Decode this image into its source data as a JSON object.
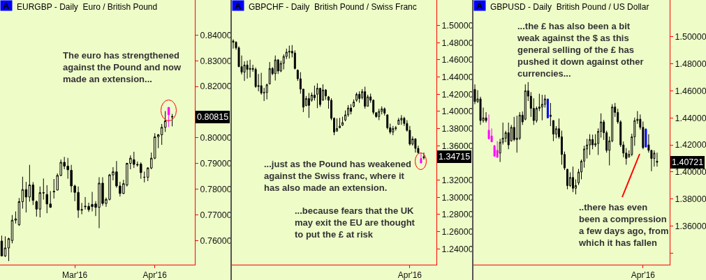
{
  "chart_data": [
    {
      "type": "candlestick",
      "title": "EURGBP - Daily  Euro / British Pound",
      "categories": [
        null,
        null,
        null,
        null,
        null,
        null,
        null,
        null,
        null,
        null,
        null,
        null,
        null,
        null,
        null,
        null,
        null,
        null,
        null,
        null,
        null,
        "Mar'16",
        null,
        null,
        null,
        null,
        null,
        null,
        null,
        null,
        null,
        null,
        null,
        null,
        null,
        null,
        null,
        null,
        null,
        null,
        null,
        null,
        null,
        null,
        "Apr'16",
        null,
        null,
        null,
        null,
        null,
        null,
        null,
        null,
        null,
        null,
        null
      ],
      "ohlc": [
        [
          0.7599,
          0.762,
          0.7539,
          0.7541
        ],
        [
          0.7541,
          0.7617,
          0.7537,
          0.7572
        ],
        [
          0.7572,
          0.7612,
          0.7521,
          0.7608
        ],
        [
          0.7601,
          0.77,
          0.759,
          0.768
        ],
        [
          0.768,
          0.7714,
          0.7667,
          0.7685
        ],
        [
          0.7662,
          0.7766,
          0.7658,
          0.7752
        ],
        [
          0.7752,
          0.7849,
          0.7725,
          0.7799
        ],
        [
          0.7799,
          0.7829,
          0.771,
          0.777
        ],
        [
          0.777,
          0.7895,
          0.7752,
          0.7817
        ],
        [
          0.7817,
          0.7828,
          0.7739,
          0.7757
        ],
        [
          0.7752,
          0.7757,
          0.7694,
          0.7723
        ],
        [
          0.7723,
          0.7811,
          0.7691,
          0.7787
        ],
        [
          0.7787,
          0.7842,
          0.776,
          0.7786
        ],
        [
          0.778,
          0.7816,
          0.7707,
          0.7743
        ],
        [
          0.7743,
          0.7793,
          0.7728,
          0.773
        ],
        [
          0.779,
          0.784,
          0.7764,
          0.7792
        ],
        [
          0.7797,
          0.7862,
          0.7796,
          0.7854
        ],
        [
          0.7854,
          0.7916,
          0.7851,
          0.7905
        ],
        [
          0.7905,
          0.7926,
          0.7878,
          0.789
        ],
        [
          0.789,
          0.7922,
          0.7841,
          0.7876
        ],
        [
          0.7874,
          0.7895,
          0.7788,
          0.7813
        ],
        [
          0.7813,
          0.7818,
          0.7754,
          0.7788
        ],
        [
          0.7788,
          0.7811,
          0.7689,
          0.7719
        ],
        [
          0.7719,
          0.7747,
          0.7703,
          0.7721
        ],
        [
          0.7732,
          0.777,
          0.7721,
          0.7734
        ],
        [
          0.7734,
          0.7748,
          0.7712,
          0.7721
        ],
        [
          0.7741,
          0.779,
          0.7714,
          0.7733
        ],
        [
          0.7743,
          0.7754,
          0.7696,
          0.773
        ],
        [
          0.773,
          0.7847,
          0.7649,
          0.7824
        ],
        [
          0.7824,
          0.7847,
          0.7736,
          0.7745
        ],
        [
          0.7745,
          0.7768,
          0.7732,
          0.7761
        ],
        [
          0.7761,
          0.786,
          0.7757,
          0.7856
        ],
        [
          0.7856,
          0.7886,
          0.7835,
          0.7868
        ],
        [
          0.7868,
          0.791,
          0.7806,
          0.7813
        ],
        [
          0.7813,
          0.7829,
          0.7772,
          0.7784
        ],
        [
          0.7784,
          0.7837,
          0.7781,
          0.7822
        ],
        [
          0.7817,
          0.7903,
          0.7811,
          0.7901
        ],
        [
          0.7901,
          0.7932,
          0.7878,
          0.7921
        ],
        [
          0.7915,
          0.7946,
          0.7883,
          0.7897
        ],
        [
          0.7897,
          0.7908,
          0.7888,
          0.7895
        ],
        [
          0.7898,
          0.7905,
          0.7841,
          0.7865
        ],
        [
          0.7847,
          0.7869,
          0.7827,
          0.7847
        ],
        [
          0.7847,
          0.7886,
          0.7832,
          0.7883
        ],
        [
          0.7883,
          0.7943,
          0.7878,
          0.7921
        ],
        [
          0.7921,
          0.8018,
          0.7917,
          0.8004
        ],
        [
          0.8004,
          0.8015,
          0.796,
          0.8012
        ],
        [
          0.8012,
          0.8054,
          0.7973,
          0.8041
        ],
        [
          0.8041,
          0.8104,
          0.8023,
          0.8066
        ],
        [
          0.8118,
          0.812,
          0.8042,
          0.809
        ],
        [
          0.8083,
          0.8093,
          0.8045,
          0.80815
        ],
        null,
        null,
        null,
        null,
        null,
        null
      ],
      "colors": [
        "#000000",
        "#000000",
        "#000000",
        "#000000",
        "#000000",
        "#000000",
        "#000000",
        "#000000",
        "#000000",
        "#000000",
        "#000000",
        "#000000",
        "#000000",
        "#000000",
        "#000000",
        "#000000",
        "#000000",
        "#000000",
        "#000000",
        "#000000",
        "#000000",
        "#000000",
        "#000000",
        "#000000",
        "#000000",
        "#000000",
        "#000000",
        "#000000",
        "#000000",
        "#000000",
        "#000000",
        "#000000",
        "#000000",
        "#000000",
        "#000000",
        "#000000",
        "#000000",
        "#000000",
        "#000000",
        "#000000",
        "#000000",
        "#000000",
        "#000000",
        "#000000",
        "#000000",
        "#000000",
        "#000000",
        "#000000",
        "#ff00ff",
        "#000000",
        null,
        null,
        null,
        null,
        null,
        null
      ],
      "value_labels": [
        null,
        null,
        null,
        null,
        null,
        null,
        null,
        null,
        null,
        null,
        null,
        null,
        null,
        null,
        null,
        null,
        null,
        null,
        null,
        null,
        null,
        null,
        null,
        null,
        null,
        null,
        null,
        null,
        null,
        null,
        null,
        null,
        null,
        null,
        null,
        null,
        null,
        null,
        null,
        null,
        null,
        null,
        null,
        null,
        null,
        null,
        null,
        null,
        null,
        "0.80815",
        null,
        null,
        null,
        null,
        null,
        null
      ],
      "ylim": [
        0.7507,
        0.8536
      ],
      "yticks": [
        {
          "value": 0.76,
          "label": "0.76000"
        },
        {
          "value": 0.77,
          "label": "0.77000"
        },
        {
          "value": 0.78,
          "label": "0.78000"
        },
        {
          "value": 0.79,
          "label": "0.79000"
        },
        {
          "value": 0.8,
          "label": "0.80000"
        },
        {
          "value": 0.82,
          "label": "0.82000"
        },
        {
          "value": 0.83,
          "label": "0.83000"
        },
        {
          "value": 0.84,
          "label": "0.84000"
        }
      ],
      "annotations": [
        "A",
        "The euro has strengthened\nagainst the Pound and now\nmade an extension..."
      ]
    },
    {
      "type": "candlestick",
      "title": "GBPCHF - Daily  British Pound / Swiss Franc",
      "categories": [
        null,
        null,
        null,
        null,
        null,
        null,
        null,
        null,
        null,
        null,
        null,
        null,
        null,
        null,
        null,
        null,
        null,
        null,
        null,
        null,
        null,
        null,
        null,
        null,
        null,
        null,
        null,
        null,
        null,
        null,
        null,
        null,
        null,
        null,
        null,
        null,
        null,
        null,
        null,
        null,
        null,
        null,
        null,
        null,
        null,
        null,
        null,
        null,
        null,
        null,
        null,
        null,
        null,
        null,
        null,
        null,
        null,
        null,
        null,
        null,
        null,
        null,
        null,
        "Apr'16",
        null,
        null,
        null,
        null,
        null,
        null,
        null,
        null,
        null
      ],
      "ohlc": [
        [
          1.482,
          1.4839,
          1.4731,
          1.4805
        ],
        [
          1.4805,
          1.4817,
          1.4718,
          1.474
        ],
        [
          1.474,
          1.4758,
          1.4516,
          1.4521
        ],
        [
          1.4521,
          1.4651,
          1.443,
          1.4457
        ],
        [
          1.4457,
          1.4583,
          1.4355,
          1.454
        ],
        [
          1.454,
          1.4591,
          1.4382,
          1.4489
        ],
        [
          1.4489,
          1.4602,
          1.4395,
          1.45
        ],
        [
          1.45,
          1.4543,
          1.4462,
          1.4489
        ],
        [
          1.4489,
          1.4511,
          1.4274,
          1.429
        ],
        [
          1.429,
          1.4436,
          1.4234,
          1.43
        ],
        [
          1.43,
          1.4449,
          1.4194,
          1.4215
        ],
        [
          1.4215,
          1.4274,
          1.4121,
          1.422
        ],
        [
          1.422,
          1.4323,
          1.414,
          1.431
        ],
        [
          1.432,
          1.4575,
          1.4315,
          1.45
        ],
        [
          1.45,
          1.4516,
          1.4422,
          1.444
        ],
        [
          1.444,
          1.4651,
          1.436,
          1.46
        ],
        [
          1.46,
          1.461,
          1.4436,
          1.447
        ],
        [
          1.447,
          1.4591,
          1.4457,
          1.456
        ],
        [
          1.456,
          1.4664,
          1.4489,
          1.464
        ],
        [
          1.464,
          1.4731,
          1.461,
          1.469
        ],
        [
          1.469,
          1.4766,
          1.4616,
          1.47
        ],
        [
          1.47,
          1.4772,
          1.4629,
          1.468
        ],
        [
          1.468,
          1.471,
          1.4489,
          1.45
        ],
        [
          1.448,
          1.4489,
          1.4355,
          1.438
        ],
        [
          1.438,
          1.4457,
          1.4207,
          1.426
        ],
        [
          1.426,
          1.426,
          1.3992,
          1.405
        ],
        [
          1.407,
          1.418,
          1.4059,
          1.415
        ],
        [
          1.415,
          1.4215,
          1.3925,
          1.407
        ],
        [
          1.413,
          1.422,
          1.4113,
          1.419
        ],
        [
          1.419,
          1.4301,
          1.4127,
          1.416
        ],
        [
          1.42,
          1.4328,
          1.4038,
          1.427
        ],
        [
          1.427,
          1.4274,
          1.4054,
          1.408
        ],
        [
          1.413,
          1.4315,
          1.4127,
          1.425
        ],
        [
          1.425,
          1.426,
          1.4135,
          1.418
        ],
        [
          1.417,
          1.418,
          1.4032,
          1.413
        ],
        [
          1.413,
          1.4153,
          1.3898,
          1.392
        ],
        [
          1.392,
          1.393,
          1.3723,
          1.376
        ],
        [
          1.377,
          1.3919,
          1.3764,
          1.38
        ],
        [
          1.381,
          1.3925,
          1.3804,
          1.383
        ],
        [
          1.384,
          1.3938,
          1.3831,
          1.387
        ],
        [
          1.39,
          1.4011,
          1.3885,
          1.396
        ],
        [
          1.396,
          1.4073,
          1.3938,
          1.404
        ],
        [
          1.404,
          1.4086,
          1.3965,
          1.4
        ],
        [
          1.406,
          1.414,
          1.4046,
          1.411
        ],
        [
          1.413,
          1.422,
          1.4113,
          1.42
        ],
        [
          1.42,
          1.4234,
          1.41,
          1.415
        ],
        [
          1.416,
          1.426,
          1.414,
          1.423
        ],
        [
          1.423,
          1.4288,
          1.4032,
          1.406
        ],
        [
          1.406,
          1.4194,
          1.4059,
          1.417
        ],
        [
          1.417,
          1.4207,
          1.41,
          1.413
        ],
        [
          1.413,
          1.414,
          1.3965,
          1.399
        ],
        [
          1.3985,
          1.3992,
          1.3925,
          1.394
        ],
        [
          1.394,
          1.4032,
          1.3898,
          1.4
        ],
        [
          1.4,
          1.4059,
          1.3965,
          1.403
        ],
        [
          1.403,
          1.4046,
          1.3952,
          1.398
        ],
        [
          1.396,
          1.3965,
          1.3791,
          1.381
        ],
        [
          1.381,
          1.3858,
          1.3737,
          1.376
        ],
        [
          1.376,
          1.3831,
          1.3723,
          1.38
        ],
        [
          1.38,
          1.3831,
          1.3777,
          1.381
        ],
        [
          1.385,
          1.3925,
          1.3844,
          1.39
        ],
        [
          1.39,
          1.3957,
          1.3844,
          1.392
        ],
        [
          1.392,
          1.3938,
          1.3831,
          1.386
        ],
        [
          1.386,
          1.3898,
          1.3764,
          1.378
        ],
        [
          1.378,
          1.3831,
          1.3602,
          1.362
        ],
        [
          1.362,
          1.371,
          1.3602,
          1.368
        ],
        [
          1.368,
          1.3688,
          1.3521,
          1.357
        ],
        [
          1.357,
          1.3602,
          1.3508,
          1.352
        ],
        [
          1.3451,
          1.3521,
          1.3397,
          1.34
        ],
        [
          1.346,
          1.3521,
          1.3441,
          1.34715
        ],
        null,
        null,
        null,
        null
      ],
      "colors": [
        "#000000",
        "#000000",
        "#000000",
        "#000000",
        "#000000",
        "#000000",
        "#000000",
        "#000000",
        "#000000",
        "#000000",
        "#000000",
        "#000000",
        "#000000",
        "#000000",
        "#000000",
        "#000000",
        "#000000",
        "#000000",
        "#000000",
        "#000000",
        "#000000",
        "#000000",
        "#000000",
        "#000000",
        "#000000",
        "#000000",
        "#000000",
        "#000000",
        "#000000",
        "#000000",
        "#000000",
        "#000000",
        "#000000",
        "#000000",
        "#000000",
        "#000000",
        "#000000",
        "#000000",
        "#000000",
        "#000000",
        "#000000",
        "#000000",
        "#000000",
        "#000000",
        "#000000",
        "#000000",
        "#000000",
        "#000000",
        "#000000",
        "#000000",
        "#000000",
        "#000000",
        "#000000",
        "#000000",
        "#000000",
        "#000000",
        "#000000",
        "#000000",
        "#000000",
        "#000000",
        "#000000",
        "#000000",
        "#000000",
        "#000000",
        "#000000",
        "#000000",
        "#000000",
        "#ff00ff",
        "#000000",
        null,
        null,
        null,
        null
      ],
      "value_labels": [
        null,
        null,
        null,
        null,
        null,
        null,
        null,
        null,
        null,
        null,
        null,
        null,
        null,
        null,
        null,
        null,
        null,
        null,
        null,
        null,
        null,
        null,
        null,
        null,
        null,
        null,
        null,
        null,
        null,
        null,
        null,
        null,
        null,
        null,
        null,
        null,
        null,
        null,
        null,
        null,
        null,
        null,
        null,
        null,
        null,
        null,
        null,
        null,
        null,
        null,
        null,
        null,
        null,
        null,
        null,
        null,
        null,
        null,
        null,
        null,
        null,
        null,
        null,
        null,
        null,
        null,
        null,
        null,
        "1.34715",
        null,
        null,
        null,
        null
      ],
      "ylim": [
        1.2216,
        1.5297
      ],
      "yticks": [
        {
          "value": 1.24,
          "label": "1.24000"
        },
        {
          "value": 1.26,
          "label": "1.26000"
        },
        {
          "value": 1.28,
          "label": "1.28000"
        },
        {
          "value": 1.3,
          "label": "1.30000"
        },
        {
          "value": 1.32,
          "label": "1.32000"
        },
        {
          "value": 1.34,
          "label": null
        },
        {
          "value": 1.36,
          "label": "1.36000"
        },
        {
          "value": 1.38,
          "label": "1.38000"
        },
        {
          "value": 1.4,
          "label": "1.40000"
        },
        {
          "value": 1.42,
          "label": "1.42000"
        },
        {
          "value": 1.44,
          "label": "1.44000"
        },
        {
          "value": 1.46,
          "label": "1.46000"
        },
        {
          "value": 1.48,
          "label": "1.48000"
        },
        {
          "value": 1.5,
          "label": "1.50000"
        }
      ],
      "annotations": [
        "A",
        "...just as the Pound has weakened\nagainst the Swiss franc, where it\nhas also made an extension.",
        "...because fears that the UK\nmay exit the EU are thought\nto put the £ at risk"
      ]
    },
    {
      "type": "candlestick",
      "title": "GBPUSD - Daily  British Pound / US Dollar",
      "categories": [
        null,
        null,
        null,
        null,
        null,
        null,
        null,
        null,
        null,
        null,
        null,
        null,
        null,
        null,
        null,
        null,
        null,
        null,
        null,
        null,
        null,
        null,
        null,
        null,
        null,
        null,
        null,
        null,
        null,
        null,
        null,
        null,
        null,
        null,
        null,
        null,
        null,
        null,
        null,
        null,
        null,
        null,
        null,
        null,
        null,
        null,
        null,
        null,
        null,
        null,
        null,
        null,
        null,
        null,
        null,
        null,
        null,
        null,
        null,
        null,
        "Apr'16",
        null,
        null,
        null,
        null,
        null,
        null,
        null,
        null,
        null
      ],
      "ohlc": [
        [
          1.461,
          1.4647,
          1.4501,
          1.452
        ],
        [
          1.452,
          1.4604,
          1.451,
          1.454
        ],
        [
          1.454,
          1.4556,
          1.4348,
          1.438
        ],
        [
          1.438,
          1.4476,
          1.4365,
          1.44
        ],
        [
          1.44,
          1.4442,
          1.4365,
          1.438
        ],
        [
          1.4309,
          1.4425,
          1.424,
          1.4246
        ],
        [
          1.4266,
          1.4322,
          1.422,
          1.4223
        ],
        [
          1.4194,
          1.42,
          1.4115,
          1.4117
        ],
        [
          1.416,
          1.4228,
          1.4105,
          1.4109
        ],
        [
          1.414,
          1.4245,
          1.4074,
          1.422
        ],
        [
          1.422,
          1.4365,
          1.4203,
          1.425
        ],
        [
          1.425,
          1.4305,
          1.422,
          1.429
        ],
        [
          1.429,
          1.4365,
          1.4168,
          1.42
        ],
        [
          1.423,
          1.4348,
          1.4225,
          1.433
        ],
        [
          1.433,
          1.4407,
          1.4228,
          1.424
        ],
        [
          1.424,
          1.4416,
          1.4143,
          1.425
        ],
        [
          1.425,
          1.4442,
          1.4237,
          1.442
        ],
        [
          1.442,
          1.4447,
          1.4348,
          1.437
        ],
        [
          1.439,
          1.4647,
          1.4382,
          1.46
        ],
        [
          1.46,
          1.4664,
          1.4524,
          1.456
        ],
        [
          1.456,
          1.459,
          1.4407,
          1.447
        ],
        [
          1.447,
          1.4544,
          1.4348,
          1.438
        ],
        [
          1.438,
          1.4484,
          1.4365,
          1.447
        ],
        [
          1.447,
          1.4578,
          1.445,
          1.448
        ],
        [
          1.448,
          1.457,
          1.4382,
          1.45
        ],
        [
          1.45,
          1.457,
          1.4476,
          1.454
        ],
        [
          1.4539,
          1.4541,
          1.4399,
          1.44
        ],
        [
          1.441,
          1.451,
          1.4339,
          1.442
        ],
        [
          1.438,
          1.4382,
          1.4228,
          1.428
        ],
        [
          1.428,
          1.4339,
          1.4249,
          1.432
        ],
        [
          1.432,
          1.4395,
          1.4245,
          1.426
        ],
        [
          1.426,
          1.4305,
          1.4054,
          1.413
        ],
        [
          1.413,
          1.4151,
          1.4015,
          1.403
        ],
        [
          1.402,
          1.4023,
          1.3873,
          1.39
        ],
        [
          1.39,
          1.3998,
          1.389,
          1.396
        ],
        [
          1.396,
          1.404,
          1.3852,
          1.388
        ],
        [
          1.388,
          1.3946,
          1.3835,
          1.39
        ],
        [
          1.392,
          1.4023,
          1.3904,
          1.4
        ],
        [
          1.4,
          1.4092,
          1.3946,
          1.408
        ],
        [
          1.408,
          1.4194,
          1.4032,
          1.417
        ],
        [
          1.417,
          1.4245,
          1.41,
          1.42
        ],
        [
          1.42,
          1.4279,
          1.4126,
          1.424
        ],
        [
          1.424,
          1.4276,
          1.4168,
          1.42
        ],
        [
          1.42,
          1.4279,
          1.4185,
          1.421
        ],
        [
          1.421,
          1.4322,
          1.4126,
          1.43
        ],
        [
          1.43,
          1.4433,
          1.4254,
          1.437
        ],
        [
          1.437,
          1.4385,
          1.4237,
          1.429
        ],
        [
          1.429,
          1.4305,
          1.4143,
          1.416
        ],
        [
          1.416,
          1.4262,
          1.4049,
          1.423
        ],
        [
          1.423,
          1.4501,
          1.422,
          1.448
        ],
        [
          1.448,
          1.451,
          1.4407,
          1.444
        ],
        [
          1.444,
          1.4467,
          1.4356,
          1.437
        ],
        [
          1.437,
          1.4382,
          1.4185,
          1.42
        ],
        [
          1.42,
          1.4225,
          1.4109,
          1.414
        ],
        [
          1.414,
          1.4177,
          1.4054,
          1.41
        ],
        [
          1.411,
          1.416,
          1.4109,
          1.413
        ],
        [
          1.413,
          1.4283,
          1.4117,
          1.426
        ],
        [
          1.426,
          1.4402,
          1.4194,
          1.438
        ],
        [
          1.438,
          1.445,
          1.4356,
          1.439
        ],
        [
          1.439,
          1.4425,
          1.4313,
          1.433
        ],
        [
          1.433,
          1.4373,
          1.4168,
          1.418
        ],
        [
          1.4317,
          1.4322,
          1.418,
          1.4185
        ],
        [
          1.42,
          1.4279,
          1.4143,
          1.416
        ],
        [
          1.416,
          1.4163,
          1.4006,
          1.41
        ],
        [
          1.41,
          1.416,
          1.404,
          1.414
        ],
        [
          1.408,
          1.4143,
          1.404,
          1.40721
        ],
        null,
        null,
        null,
        null
      ],
      "colors": [
        "#000000",
        "#000000",
        "#000000",
        "#000000",
        "#000000",
        "#ff00ff",
        "#ff00ff",
        "#ff00ff",
        "#ff00ff",
        "#000000",
        "#000000",
        "#000000",
        "#000000",
        "#000000",
        "#000000",
        "#000000",
        "#000000",
        "#000000",
        "#000000",
        "#000000",
        "#000000",
        "#000000",
        "#000000",
        "#000000",
        "#000000",
        "#000000",
        "#0000ff",
        "#000000",
        "#000000",
        "#000000",
        "#000000",
        "#000000",
        "#000000",
        "#000000",
        "#000000",
        "#000000",
        "#000000",
        "#000000",
        "#000000",
        "#000000",
        "#000000",
        "#000000",
        "#000000",
        "#000000",
        "#000000",
        "#000000",
        "#000000",
        "#000000",
        "#000000",
        "#000000",
        "#000000",
        "#000000",
        "#000000",
        "#000000",
        "#000000",
        "#000000",
        "#000000",
        "#000000",
        "#000000",
        "#000000",
        "#000000",
        "#0000ff",
        "#000000",
        "#000000",
        "#000000",
        "#000000",
        null,
        null,
        null,
        null
      ],
      "value_labels": [
        null,
        null,
        null,
        null,
        null,
        null,
        null,
        null,
        null,
        null,
        null,
        null,
        null,
        null,
        null,
        null,
        null,
        null,
        null,
        null,
        null,
        null,
        null,
        null,
        null,
        null,
        null,
        null,
        null,
        null,
        null,
        null,
        null,
        null,
        null,
        null,
        null,
        null,
        null,
        null,
        null,
        null,
        null,
        null,
        null,
        null,
        null,
        null,
        null,
        null,
        null,
        null,
        null,
        null,
        null,
        null,
        null,
        null,
        null,
        null,
        null,
        null,
        null,
        null,
        null,
        "1.40721",
        null,
        null,
        null,
        null
      ],
      "ylim": [
        1.3316,
        1.527
      ],
      "yticks": [
        {
          "value": 1.34,
          "label": null
        },
        {
          "value": 1.36,
          "label": "1.36000"
        },
        {
          "value": 1.38,
          "label": "1.38000"
        },
        {
          "value": 1.4,
          "label": "1.40000"
        },
        {
          "value": 1.42,
          "label": "1.42000"
        },
        {
          "value": 1.44,
          "label": "1.44000"
        },
        {
          "value": 1.46,
          "label": "1.46000"
        },
        {
          "value": 1.48,
          "label": "1.48000"
        },
        {
          "value": 1.5,
          "label": "1.50000"
        }
      ],
      "annotations": [
        "A",
        "...the £ has also been a bit\nweak against the $ as this\ngeneral selling of the £ has\npushed it down against other\ncurrencies...",
        "..there has even\nbeen a compression\na few days ago, from\nwhich it has fallen"
      ]
    }
  ]
}
